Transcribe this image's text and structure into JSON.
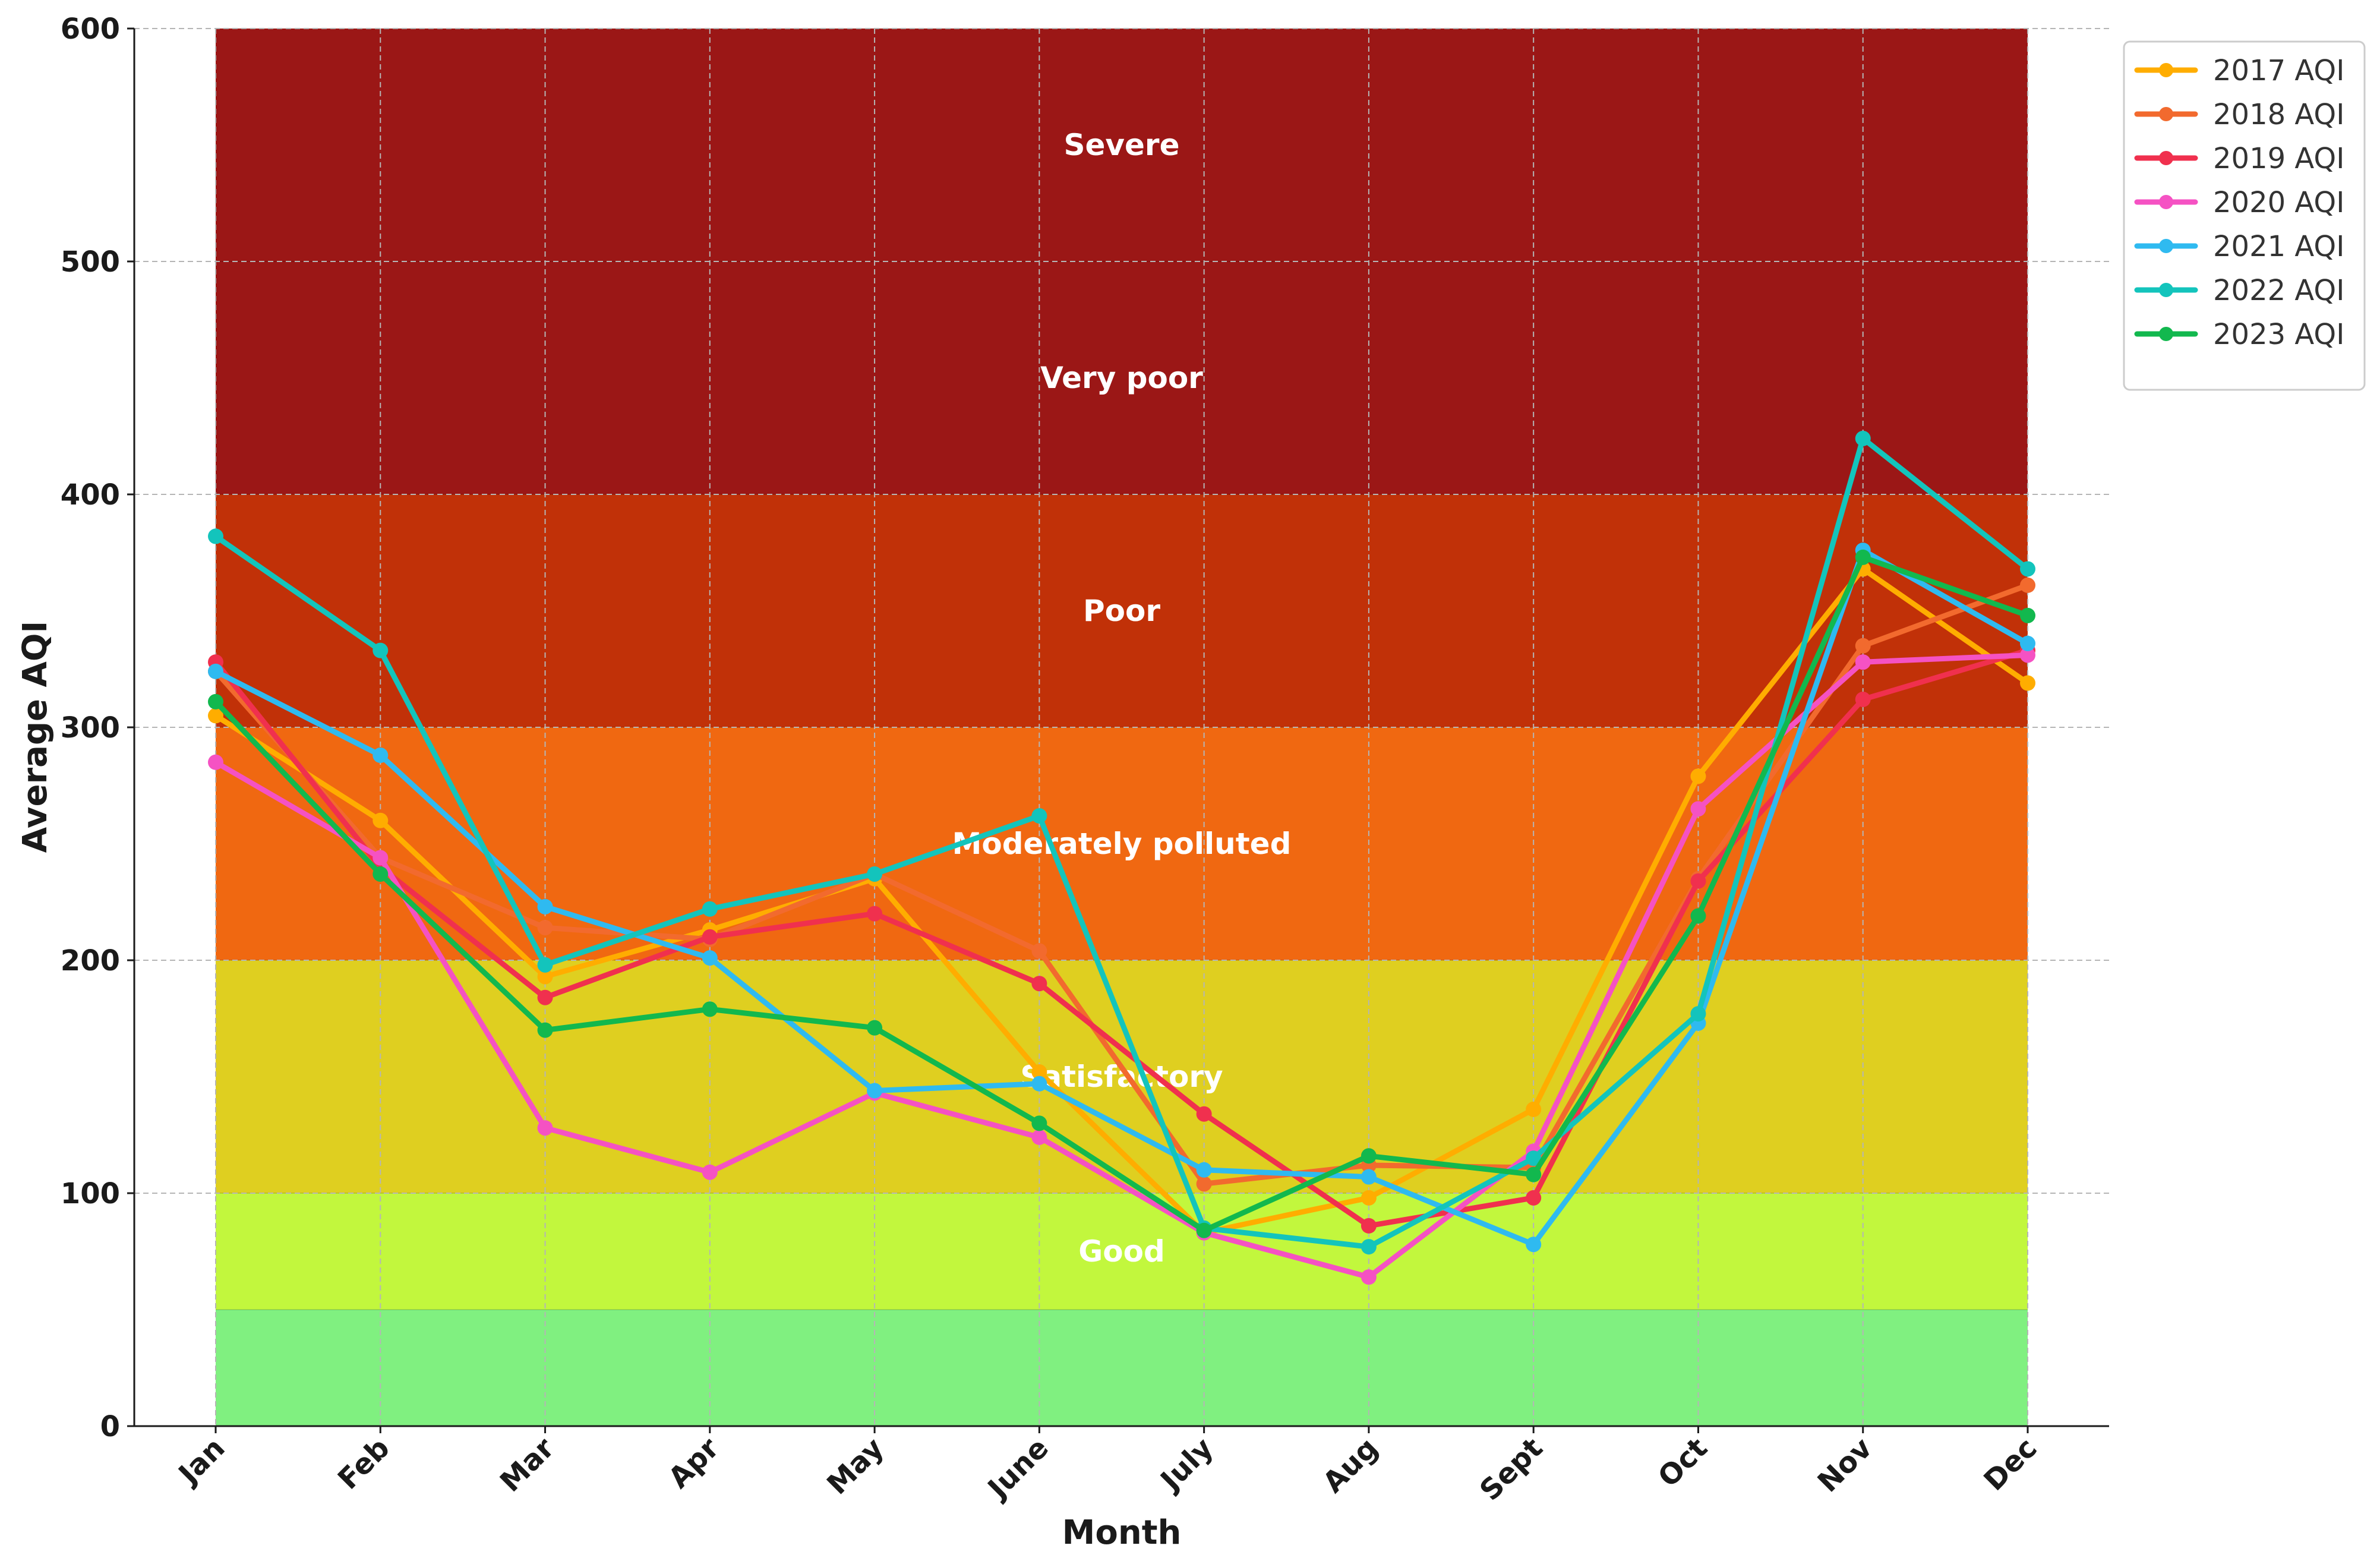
{
  "chart_data": {
    "type": "line",
    "xlabel": "Month",
    "ylabel": "Average AQI",
    "ylim": [
      0,
      600
    ],
    "yticks": [
      0,
      100,
      200,
      300,
      400,
      500,
      600
    ],
    "grid": true,
    "legend_position": "top-right",
    "categories": [
      "Jan",
      "Feb",
      "Mar",
      "Apr",
      "May",
      "June",
      "July",
      "Aug",
      "Sept",
      "Oct",
      "Nov",
      "Dec"
    ],
    "bands": [
      {
        "label": "Good",
        "from": 50,
        "to": 100,
        "color": "#c2f73d"
      },
      {
        "label": "Satisfactory",
        "from": 100,
        "to": 200,
        "color": "#dfcf20"
      },
      {
        "label": "Moderately polluted",
        "from": 200,
        "to": 300,
        "color": "#f06811"
      },
      {
        "label": "Poor",
        "from": 300,
        "to": 400,
        "color": "#c13108"
      },
      {
        "label": "Very poor",
        "from": 400,
        "to": 500,
        "color": "#9b1716"
      },
      {
        "label": "Severe",
        "from": 500,
        "to": 600,
        "color": "#9b1716"
      }
    ],
    "base_band": {
      "from": 0,
      "to": 50,
      "color": "#80f080"
    },
    "series": [
      {
        "name": "2017 AQI",
        "color": "#ffad00",
        "values": [
          305,
          260,
          193,
          213,
          235,
          152,
          83,
          98,
          136,
          279,
          368,
          319
        ]
      },
      {
        "name": "2018 AQI",
        "color": "#f26a2e",
        "values": [
          324,
          244,
          214,
          209,
          237,
          204,
          104,
          112,
          111,
          235,
          335,
          361
        ]
      },
      {
        "name": "2019 AQI",
        "color": "#f0304e",
        "values": [
          328,
          240,
          184,
          210,
          220,
          190,
          134,
          86,
          98,
          234,
          312,
          333
        ]
      },
      {
        "name": "2020 AQI",
        "color": "#f552c3",
        "values": [
          285,
          244,
          128,
          109,
          143,
          124,
          83,
          64,
          118,
          265,
          328,
          331
        ]
      },
      {
        "name": "2021 AQI",
        "color": "#2fbaf0",
        "values": [
          324,
          288,
          223,
          201,
          144,
          147,
          110,
          107,
          78,
          173,
          376,
          336
        ]
      },
      {
        "name": "2022 AQI",
        "color": "#13c4bc",
        "values": [
          382,
          333,
          198,
          222,
          237,
          262,
          85,
          77,
          115,
          177,
          424,
          368
        ]
      },
      {
        "name": "2023 AQI",
        "color": "#12b84e",
        "values": [
          311,
          237,
          170,
          179,
          171,
          130,
          84,
          116,
          108,
          219,
          373,
          348
        ]
      }
    ]
  }
}
